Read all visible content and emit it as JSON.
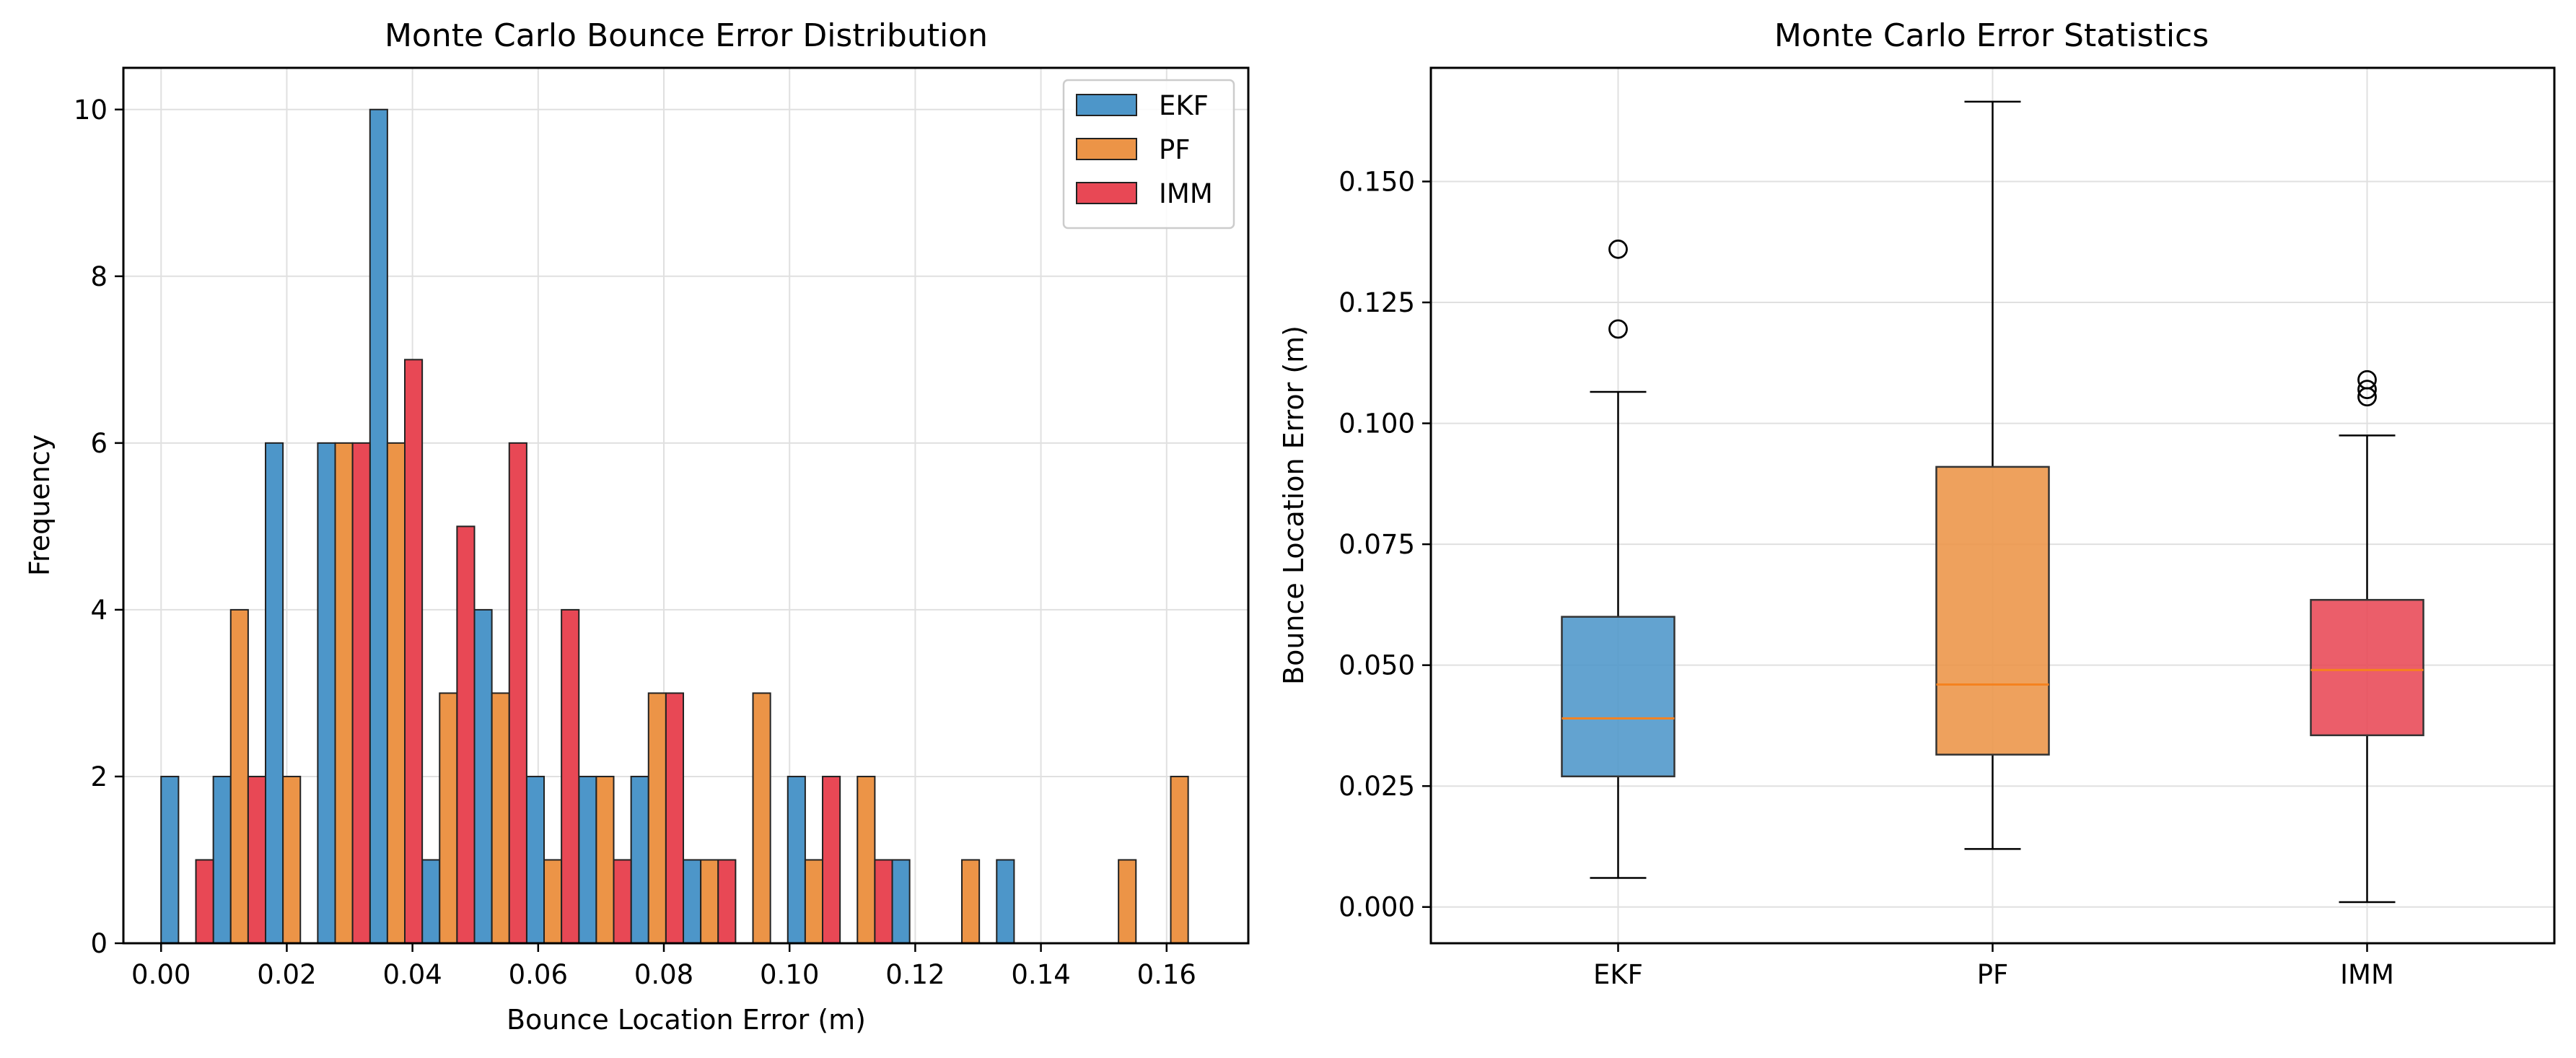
{
  "colors": {
    "EKF": "#4d96c9",
    "PF": "#ec9447",
    "IMM": "#e84855",
    "median": "#f5821f",
    "grid": "#e0e0e0"
  },
  "chart_data": [
    {
      "type": "bar",
      "subtype": "histogram",
      "title": "Monte Carlo Bounce Error Distribution",
      "xlabel": "Bounce Location Error (m)",
      "ylabel": "Frequency",
      "xlim": [
        -0.006,
        0.173
      ],
      "ylim": [
        0,
        10.5
      ],
      "xticks": [
        "0.00",
        "0.02",
        "0.04",
        "0.06",
        "0.08",
        "0.10",
        "0.12",
        "0.14",
        "0.16"
      ],
      "yticks": [
        "0",
        "2",
        "4",
        "6",
        "8",
        "10"
      ],
      "grid": true,
      "legend": "top-right",
      "bin_width": 0.00831,
      "bin_left": [
        0.0,
        0.00831,
        0.01662,
        0.02493,
        0.03324,
        0.04155,
        0.04986,
        0.05817,
        0.06648,
        0.07479,
        0.0831,
        0.09141,
        0.09972,
        0.10803,
        0.11634,
        0.12465,
        0.13296,
        0.14127,
        0.14958,
        0.15789
      ],
      "series": [
        {
          "name": "EKF",
          "values": [
            2,
            2,
            6,
            6,
            10,
            1,
            4,
            2,
            2,
            2,
            1,
            0,
            2,
            0,
            1,
            0,
            1,
            0,
            0,
            0
          ]
        },
        {
          "name": "PF",
          "values": [
            0,
            4,
            2,
            6,
            6,
            3,
            3,
            1,
            2,
            3,
            1,
            3,
            1,
            2,
            0,
            1,
            0,
            0,
            1,
            2
          ]
        },
        {
          "name": "IMM",
          "values": [
            1,
            2,
            0,
            6,
            7,
            5,
            6,
            4,
            1,
            3,
            1,
            0,
            2,
            1,
            0,
            0,
            0,
            0,
            0,
            0
          ]
        }
      ]
    },
    {
      "type": "box",
      "title": "Monte Carlo Error Statistics",
      "xlabel": "",
      "ylabel": "Bounce Location Error (m)",
      "ylim": [
        -0.0075,
        0.1735
      ],
      "yticks": [
        "0.000",
        "0.025",
        "0.050",
        "0.075",
        "0.100",
        "0.125",
        "0.150"
      ],
      "grid": true,
      "categories": [
        "EKF",
        "PF",
        "IMM"
      ],
      "boxes": [
        {
          "name": "EKF",
          "whisker_low": 0.006,
          "q1": 0.027,
          "median": 0.039,
          "q3": 0.06,
          "whisker_high": 0.1065,
          "outliers": [
            0.1195,
            0.136
          ]
        },
        {
          "name": "PF",
          "whisker_low": 0.012,
          "q1": 0.0315,
          "median": 0.046,
          "q3": 0.091,
          "whisker_high": 0.1665,
          "outliers": []
        },
        {
          "name": "IMM",
          "whisker_low": 0.001,
          "q1": 0.0355,
          "median": 0.049,
          "q3": 0.0635,
          "whisker_high": 0.0975,
          "outliers": [
            0.1055,
            0.107,
            0.109
          ]
        }
      ]
    }
  ]
}
